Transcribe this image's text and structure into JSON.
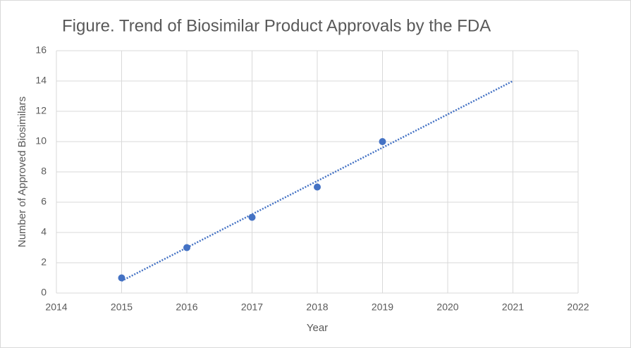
{
  "chart_data": {
    "type": "scatter",
    "title": "Figure. Trend of Biosimilar Product Approvals by the FDA",
    "x_label": "Year",
    "y_label": "Number of Approved Biosimilars",
    "series": [
      {
        "color": "#4472c4",
        "x": [
          2015,
          2016,
          2017,
          2018,
          2019
        ],
        "values": [
          1,
          3,
          5,
          7,
          10
        ]
      }
    ],
    "trendline": {
      "x": [
        2015,
        2021
      ],
      "values": [
        0.8,
        14
      ],
      "color": "#4472c4",
      "style": "dotted"
    },
    "xlim": [
      2014,
      2022
    ],
    "xticks": [
      2014,
      2015,
      2016,
      2017,
      2018,
      2019,
      2020,
      2021,
      2022
    ],
    "ylim": [
      0,
      16
    ],
    "yticks": [
      0,
      2,
      4,
      6,
      8,
      10,
      12,
      14,
      16
    ],
    "grid": true
  }
}
